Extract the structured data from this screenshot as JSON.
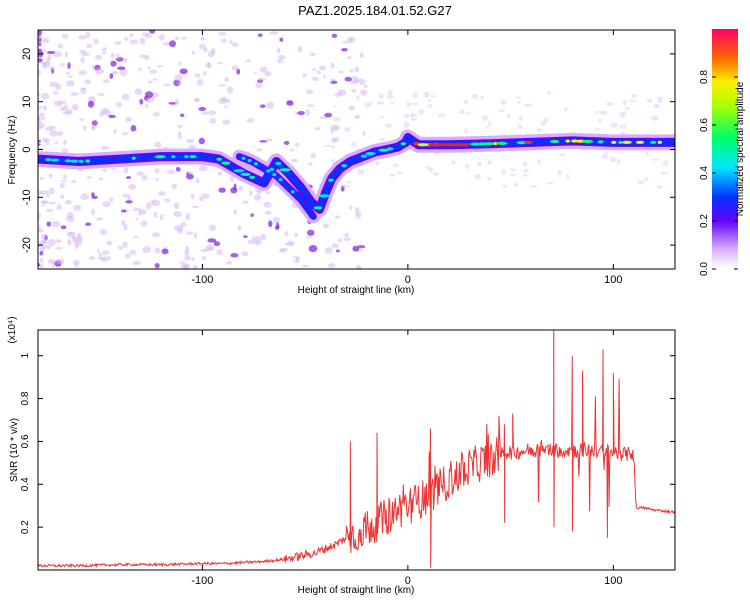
{
  "title": "PAZ1.2025.184.01.52.G27",
  "chart_data": [
    {
      "type": "heatmap",
      "xlabel": "Height of straight line (km)",
      "ylabel": "Frequency (Hz)",
      "xlim": [
        -180,
        130
      ],
      "ylim": [
        -25,
        25
      ],
      "xticks": [
        "-100",
        "0",
        "100"
      ],
      "yticks": [
        "-20",
        "-10",
        "0",
        "10",
        "20"
      ],
      "colorbar": {
        "label": "Normalized spectral amplitude",
        "range": [
          0,
          1
        ],
        "ticks": [
          "0.0",
          "0.2",
          "0.4",
          "0.6",
          "0.8"
        ]
      },
      "ridge": {
        "x": [
          -180,
          -160,
          -140,
          -120,
          -110,
          -100,
          -92,
          -86,
          -80,
          -75,
          -70,
          -64,
          -58,
          -52,
          -47,
          -43,
          -40,
          -37,
          -33,
          -28,
          -22,
          -16,
          -10,
          -5,
          -1,
          0,
          5,
          20,
          40,
          60,
          80,
          100,
          130
        ],
        "y": [
          -2,
          -2.5,
          -2,
          -1.5,
          -1.5,
          -1.5,
          -2,
          -3.5,
          -5,
          -6,
          -7,
          -2.5,
          -5,
          -8,
          -11,
          -12.5,
          -9,
          -6,
          -4,
          -2.5,
          -1.5,
          -0.5,
          0,
          0.5,
          1.5,
          2.5,
          1,
          1,
          1.2,
          1.5,
          1.8,
          1.5,
          1.5
        ]
      },
      "spur": {
        "x": [
          -82,
          -76,
          -70,
          -64,
          -58,
          -52,
          -46
        ],
        "y": [
          -1.5,
          -2.5,
          -4,
          -5.5,
          -8,
          -10.5,
          -14
        ]
      }
    },
    {
      "type": "line",
      "xlabel": "Height of straight line (km)",
      "ylabel": "SNR (10 * v/v)",
      "yscale_label": "(x10⁴)",
      "xlim": [
        -180,
        130
      ],
      "ylim": [
        0,
        1.12
      ],
      "xticks": [
        "-100",
        "0",
        "100"
      ],
      "yticks": [
        "0.2",
        "0.4",
        "0.6",
        "0.8",
        "1"
      ],
      "series": [
        {
          "color": "#ee3333",
          "x": [
            -180,
            -160,
            -140,
            -120,
            -100,
            -90,
            -80,
            -70,
            -60,
            -50,
            -45,
            -40,
            -35,
            -30,
            -25,
            -20,
            -15,
            -10,
            -5,
            0,
            5,
            10,
            15,
            20,
            25,
            30,
            35,
            40,
            45,
            48,
            52,
            60,
            70,
            75,
            80,
            85,
            90,
            95,
            100,
            105,
            110,
            111,
            115,
            120,
            130
          ],
          "y": [
            0.02,
            0.02,
            0.025,
            0.025,
            0.03,
            0.03,
            0.035,
            0.04,
            0.05,
            0.07,
            0.08,
            0.1,
            0.12,
            0.15,
            0.17,
            0.2,
            0.22,
            0.25,
            0.28,
            0.3,
            0.32,
            0.35,
            0.38,
            0.42,
            0.45,
            0.48,
            0.5,
            0.52,
            0.54,
            0.55,
            0.55,
            0.56,
            0.56,
            0.56,
            0.56,
            0.56,
            0.56,
            0.55,
            0.55,
            0.54,
            0.54,
            0.29,
            0.29,
            0.28,
            0.27
          ]
        }
      ],
      "peaks": [
        {
          "x": -28,
          "y": 0.6
        },
        {
          "x": -15,
          "y": 0.64
        },
        {
          "x": 11,
          "y": 0.66
        },
        {
          "x": 47,
          "y": 0.68
        },
        {
          "x": 51,
          "y": 0.73
        },
        {
          "x": 71,
          "y": 1.12
        },
        {
          "x": 80,
          "y": 1.0
        },
        {
          "x": 85,
          "y": 0.93
        },
        {
          "x": 95,
          "y": 1.03
        },
        {
          "x": 100,
          "y": 0.92
        }
      ],
      "dips": [
        {
          "x": 11,
          "y": 0.01
        },
        {
          "x": 47,
          "y": 0.22
        },
        {
          "x": 71,
          "y": 0.2
        },
        {
          "x": 80,
          "y": 0.18
        },
        {
          "x": 97,
          "y": 0.15
        }
      ]
    }
  ]
}
